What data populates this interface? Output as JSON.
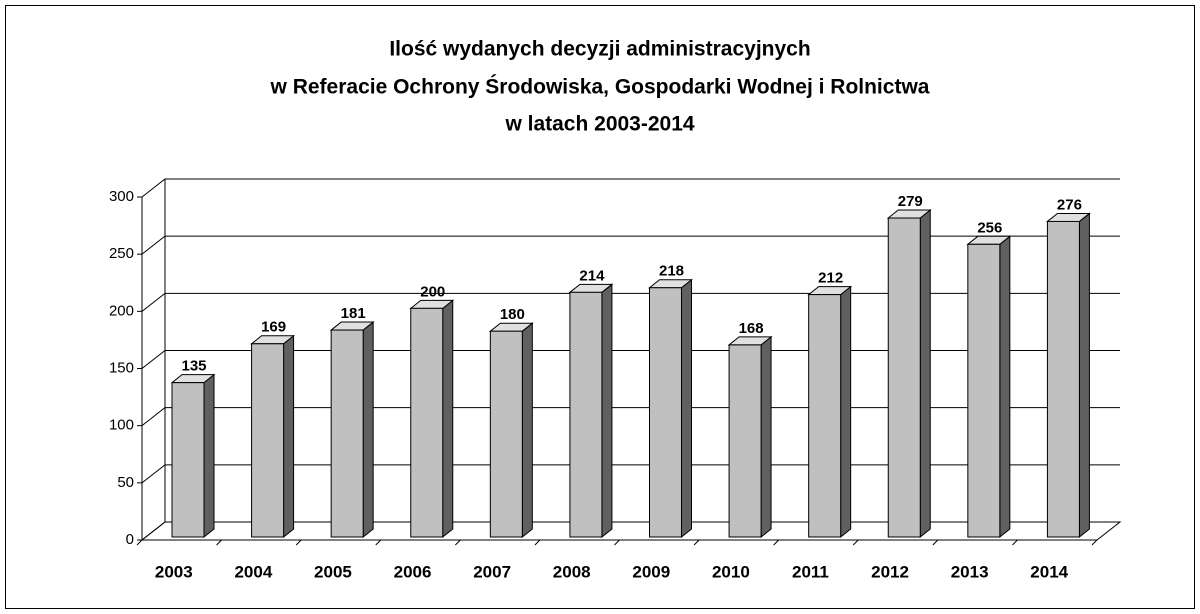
{
  "chart_data": {
    "type": "bar",
    "title": [
      "Ilość wydanych decyzji administracyjnych",
      "w Referacie Ochrony Środowiska, Gospodarki Wodnej i Rolnictwa",
      "w latach 2003-2014"
    ],
    "categories": [
      "2003",
      "2004",
      "2005",
      "2006",
      "2007",
      "2008",
      "2009",
      "2010",
      "2011",
      "2012",
      "2013",
      "2014"
    ],
    "values": [
      135,
      169,
      181,
      200,
      180,
      214,
      218,
      168,
      212,
      279,
      256,
      276
    ],
    "color": "#c0c0c0",
    "ylim": [
      0,
      300
    ],
    "yticks": [
      0,
      50,
      100,
      150,
      200,
      250,
      300
    ],
    "grid": true
  }
}
